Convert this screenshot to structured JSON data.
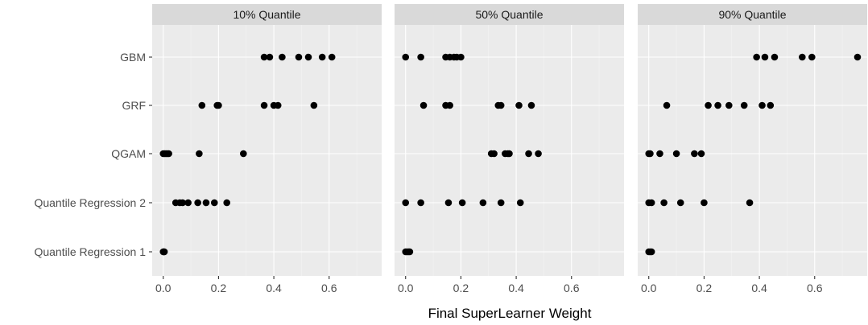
{
  "chart_data": {
    "type": "scatter",
    "xlabel": "Final SuperLearner Weight",
    "ylabel": "",
    "xlim": [
      -0.04,
      0.79
    ],
    "x_ticks": [
      0.0,
      0.2,
      0.4,
      0.6
    ],
    "x_tick_labels": [
      "0.0",
      "0.2",
      "0.4",
      "0.6"
    ],
    "categories": [
      "GBM",
      "GRF",
      "QGAM",
      "Quantile Regression 2",
      "Quantile Regression 1"
    ],
    "grid": true,
    "panels": [
      {
        "title": "10% Quantile",
        "series": [
          {
            "category": "GBM",
            "x": [
              0.365,
              0.385,
              0.43,
              0.49,
              0.525,
              0.575,
              0.61
            ]
          },
          {
            "category": "GRF",
            "x": [
              0.14,
              0.195,
              0.2,
              0.365,
              0.4,
              0.415,
              0.545
            ]
          },
          {
            "category": "QGAM",
            "x": [
              0.0,
              0.005,
              0.01,
              0.015,
              0.02,
              0.13,
              0.29
            ]
          },
          {
            "category": "Quantile Regression 2",
            "x": [
              0.045,
              0.06,
              0.07,
              0.09,
              0.125,
              0.155,
              0.185,
              0.23
            ]
          },
          {
            "category": "Quantile Regression 1",
            "x": [
              0.0,
              0.002,
              0.004
            ]
          }
        ]
      },
      {
        "title": "50% Quantile",
        "series": [
          {
            "category": "GBM",
            "x": [
              0.0,
              0.055,
              0.145,
              0.16,
              0.175,
              0.185,
              0.2
            ]
          },
          {
            "category": "GRF",
            "x": [
              0.065,
              0.145,
              0.16,
              0.335,
              0.345,
              0.41,
              0.455
            ]
          },
          {
            "category": "QGAM",
            "x": [
              0.31,
              0.32,
              0.36,
              0.37,
              0.375,
              0.445,
              0.48
            ]
          },
          {
            "category": "Quantile Regression 2",
            "x": [
              0.0,
              0.055,
              0.155,
              0.205,
              0.28,
              0.345,
              0.415
            ]
          },
          {
            "category": "Quantile Regression 1",
            "x": [
              0.0,
              0.005,
              0.01,
              0.015
            ]
          }
        ]
      },
      {
        "title": "90% Quantile",
        "series": [
          {
            "category": "GBM",
            "x": [
              0.39,
              0.42,
              0.455,
              0.555,
              0.59,
              0.755
            ]
          },
          {
            "category": "GRF",
            "x": [
              0.065,
              0.215,
              0.25,
              0.29,
              0.345,
              0.41,
              0.44
            ]
          },
          {
            "category": "QGAM",
            "x": [
              0.0,
              0.005,
              0.04,
              0.1,
              0.165,
              0.19
            ]
          },
          {
            "category": "Quantile Regression 2",
            "x": [
              0.0,
              0.01,
              0.055,
              0.115,
              0.2,
              0.365
            ]
          },
          {
            "category": "Quantile Regression 1",
            "x": [
              0.0,
              0.005,
              0.01
            ]
          }
        ]
      }
    ]
  }
}
